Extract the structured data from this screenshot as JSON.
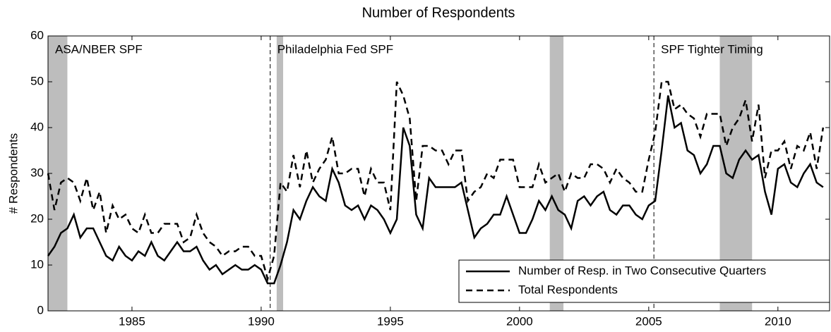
{
  "chart_data": {
    "type": "line",
    "title": "Number of Respondents",
    "y_label": "# Respondents",
    "x": [
      1981.75,
      1982,
      1982.25,
      1982.5,
      1982.75,
      1983,
      1983.25,
      1983.5,
      1983.75,
      1984,
      1984.25,
      1984.5,
      1984.75,
      1985,
      1985.25,
      1985.5,
      1985.75,
      1986,
      1986.25,
      1986.5,
      1986.75,
      1987,
      1987.25,
      1987.5,
      1987.75,
      1988,
      1988.25,
      1988.5,
      1988.75,
      1989,
      1989.25,
      1989.5,
      1989.75,
      1990,
      1990.25,
      1990.5,
      1990.75,
      1991,
      1991.25,
      1991.5,
      1991.75,
      1992,
      1992.25,
      1992.5,
      1992.75,
      1993,
      1993.25,
      1993.5,
      1993.75,
      1994,
      1994.25,
      1994.5,
      1994.75,
      1995,
      1995.25,
      1995.5,
      1995.75,
      1996,
      1996.25,
      1996.5,
      1996.75,
      1997,
      1997.25,
      1997.5,
      1997.75,
      1998,
      1998.25,
      1998.5,
      1998.75,
      1999,
      1999.25,
      1999.5,
      1999.75,
      2000,
      2000.25,
      2000.5,
      2000.75,
      2001,
      2001.25,
      2001.5,
      2001.75,
      2002,
      2002.25,
      2002.5,
      2002.75,
      2003,
      2003.25,
      2003.5,
      2003.75,
      2004,
      2004.25,
      2004.5,
      2004.75,
      2005,
      2005.25,
      2005.5,
      2005.75,
      2006,
      2006.25,
      2006.5,
      2006.75,
      2007,
      2007.25,
      2007.5,
      2007.75,
      2008,
      2008.25,
      2008.5,
      2008.75,
      2009,
      2009.25,
      2009.5,
      2009.75,
      2010,
      2010.25,
      2010.5,
      2010.75,
      2011,
      2011.25,
      2011.5,
      2011.75
    ],
    "series": [
      {
        "name": "Number of Resp. in Two Consecutive Quarters",
        "color": "#000000",
        "dash": "solid",
        "values": [
          12,
          14,
          17,
          18,
          21,
          16,
          18,
          18,
          15,
          12,
          11,
          14,
          12,
          11,
          13,
          12,
          15,
          12,
          11,
          13,
          15,
          13,
          13,
          14,
          11,
          9,
          10,
          8,
          9,
          10,
          9,
          9,
          10,
          9,
          6,
          6,
          10,
          15,
          22,
          20,
          24,
          27,
          25,
          24,
          31,
          28,
          23,
          22,
          23,
          20,
          23,
          22,
          20,
          17,
          20,
          40,
          36,
          21,
          18,
          29,
          27,
          27,
          27,
          27,
          28,
          22,
          16,
          18,
          19,
          21,
          21,
          25,
          21,
          17,
          17,
          20,
          24,
          22,
          25,
          22,
          21,
          18,
          24,
          25,
          23,
          25,
          26,
          22,
          21,
          23,
          23,
          21,
          20,
          23,
          24,
          35,
          47,
          40,
          41,
          35,
          34,
          30,
          32,
          36,
          36,
          30,
          29,
          33,
          35,
          33,
          34,
          26,
          21,
          31,
          32,
          28,
          27,
          30,
          32,
          28,
          27
        ]
      },
      {
        "name": "Total Respondents",
        "color": "#000000",
        "dash": "dashed",
        "values": [
          30,
          22,
          28,
          29,
          28,
          24,
          29,
          22,
          26,
          17,
          23,
          20,
          21,
          18,
          17,
          21,
          17,
          17,
          19,
          19,
          19,
          15,
          16,
          21,
          17,
          15,
          14,
          12,
          13,
          13,
          14,
          14,
          12,
          12,
          7,
          12,
          28,
          26,
          34,
          27,
          35,
          28,
          31,
          33,
          38,
          30,
          30,
          31,
          31,
          25,
          31,
          28,
          28,
          22,
          50,
          47,
          42,
          24,
          36,
          36,
          35,
          35,
          32,
          35,
          35,
          24,
          26,
          27,
          30,
          29,
          33,
          33,
          33,
          27,
          27,
          27,
          32,
          28,
          29,
          30,
          26,
          30,
          29,
          29,
          32,
          32,
          31,
          28,
          31,
          29,
          28,
          26,
          26,
          33,
          39,
          50,
          50,
          44,
          45,
          43,
          42,
          38,
          43,
          43,
          43,
          36,
          40,
          42,
          46,
          37,
          45,
          29,
          35,
          35,
          37,
          31,
          36,
          35,
          39,
          31,
          40
        ]
      }
    ],
    "shaded": [
      [
        1981.75,
        1982.5
      ],
      [
        1990.6,
        1990.85
      ],
      [
        2001.17,
        2001.7
      ],
      [
        2007.75,
        2009
      ]
    ],
    "dividers": [
      1990.35,
      2005.2
    ],
    "annotations": [
      "ASA/NBER SPF",
      "Philadelphia Fed SPF",
      "SPF Tighter Timing"
    ],
    "xlim": [
      1981.75,
      2012
    ],
    "ylim": [
      0,
      60
    ],
    "xticks": [
      1985,
      1990,
      1995,
      2000,
      2005,
      2010
    ],
    "yticks": [
      0,
      10,
      20,
      30,
      40,
      50,
      60
    ],
    "legend": "lower right"
  }
}
